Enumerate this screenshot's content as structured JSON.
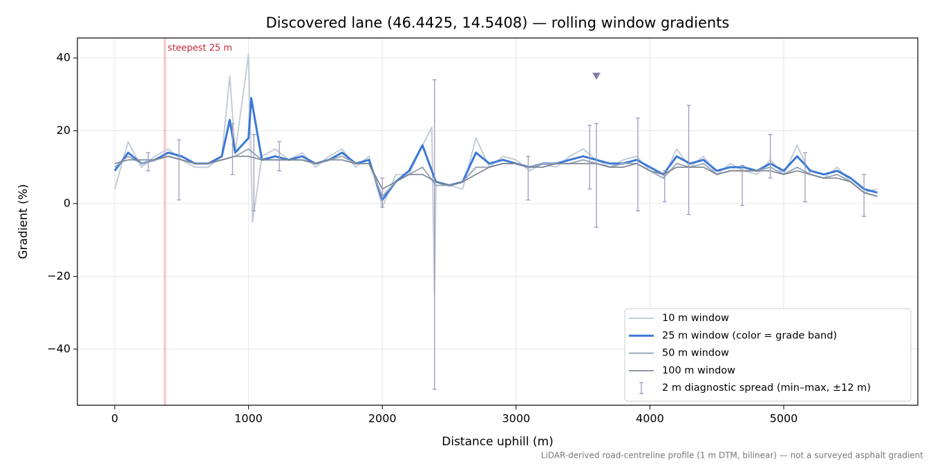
{
  "chart_data": {
    "type": "line",
    "title": "Discovered lane (46.4425, 14.5408) — rolling window gradients",
    "xlabel": "Distance uphill (m)",
    "ylabel": "Gradient (%)",
    "footnote": "LiDAR-derived road-centreline profile (1 m DTM, bilinear) — not a surveyed asphalt gradient",
    "xlim": [
      -279,
      6002
    ],
    "ylim": [
      -55.4,
      45.5
    ],
    "xticks": [
      0,
      1000,
      2000,
      3000,
      4000,
      5000
    ],
    "yticks": [
      {
        "value": -40,
        "label": "−40"
      },
      {
        "value": -20,
        "label": "−20"
      },
      0,
      20,
      40
    ],
    "grid": true,
    "legend": "lower right",
    "series": [
      {
        "name": "10 m window",
        "color": "#c3ccd7",
        "width": 2,
        "x": [
          0,
          100,
          200,
          300,
          400,
          500,
          600,
          700,
          800,
          860,
          900,
          1000,
          1030,
          1100,
          1200,
          1300,
          1400,
          1500,
          1600,
          1700,
          1800,
          1900,
          2000,
          2100,
          2200,
          2300,
          2370,
          2390,
          2400,
          2500,
          2600,
          2700,
          2800,
          2900,
          3000,
          3100,
          3200,
          3300,
          3400,
          3500,
          3600,
          3700,
          3800,
          3900,
          4000,
          4100,
          4200,
          4300,
          4400,
          4500,
          4600,
          4700,
          4800,
          4900,
          5000,
          5100,
          5200,
          5300,
          5400,
          5500,
          5600,
          5700
        ],
        "values": [
          4,
          17,
          10,
          13,
          15,
          12,
          10,
          10,
          13,
          35,
          14,
          41,
          -5,
          13,
          15,
          12,
          14,
          10,
          13,
          15,
          10,
          13,
          -1,
          8,
          8,
          16,
          21,
          -25,
          5,
          5,
          4,
          18,
          10,
          13,
          12,
          9,
          11,
          10,
          13,
          15,
          12,
          10,
          12,
          13,
          9,
          7,
          15,
          10,
          13,
          8,
          11,
          9,
          8,
          12,
          8,
          16,
          8,
          7,
          10,
          6,
          3,
          4
        ]
      },
      {
        "name": "25 m window (color = grade band)",
        "color": "#3a78d6",
        "width": 3,
        "x": [
          0,
          100,
          200,
          300,
          400,
          500,
          600,
          700,
          800,
          860,
          900,
          1000,
          1020,
          1100,
          1200,
          1300,
          1400,
          1500,
          1600,
          1700,
          1800,
          1900,
          2000,
          2100,
          2200,
          2300,
          2400,
          2500,
          2600,
          2700,
          2800,
          2900,
          3000,
          3100,
          3200,
          3300,
          3400,
          3500,
          3600,
          3700,
          3800,
          3900,
          4000,
          4100,
          4200,
          4300,
          4400,
          4500,
          4600,
          4700,
          4800,
          4900,
          5000,
          5100,
          5200,
          5300,
          5400,
          5500,
          5600,
          5700
        ],
        "values": [
          9,
          14,
          11,
          12,
          14,
          13,
          11,
          11,
          13,
          23,
          14,
          18,
          29,
          12,
          13,
          12,
          13,
          11,
          12,
          14,
          11,
          12,
          1,
          6,
          9,
          16,
          6,
          5,
          6,
          14,
          11,
          12,
          11,
          10,
          11,
          11,
          12,
          13,
          12,
          11,
          11,
          12,
          10,
          8,
          13,
          11,
          12,
          9,
          10,
          10,
          9,
          11,
          9,
          13,
          9,
          8,
          9,
          7,
          4,
          3
        ]
      },
      {
        "name": "50 m window",
        "color": "#9aa8b8",
        "width": 2,
        "x": [
          0,
          100,
          200,
          300,
          400,
          500,
          600,
          700,
          800,
          900,
          1000,
          1100,
          1200,
          1300,
          1400,
          1500,
          1600,
          1700,
          1800,
          1900,
          2000,
          2100,
          2200,
          2300,
          2400,
          2500,
          2600,
          2700,
          2800,
          2900,
          3000,
          3100,
          3200,
          3300,
          3400,
          3500,
          3600,
          3700,
          3800,
          3900,
          4000,
          4100,
          4200,
          4300,
          4400,
          4500,
          4600,
          4700,
          4800,
          4900,
          5000,
          5100,
          5200,
          5300,
          5400,
          5500,
          5600,
          5700
        ],
        "values": [
          10,
          13,
          11,
          12,
          13,
          12,
          11,
          11,
          12,
          13,
          15,
          12,
          12,
          12,
          12,
          11,
          12,
          13,
          11,
          11,
          2,
          6,
          8,
          10,
          5,
          5,
          6,
          10,
          10,
          11,
          11,
          10,
          11,
          11,
          11,
          12,
          11,
          10,
          11,
          11,
          9,
          7,
          11,
          10,
          11,
          8,
          9,
          9,
          9,
          10,
          8,
          10,
          8,
          7,
          8,
          6,
          3,
          2
        ]
      },
      {
        "name": "100 m window",
        "color": "#76808f",
        "width": 1.6,
        "x": [
          0,
          100,
          200,
          300,
          400,
          500,
          600,
          700,
          800,
          900,
          1000,
          1100,
          1200,
          1300,
          1400,
          1500,
          1600,
          1700,
          1800,
          1900,
          2000,
          2100,
          2200,
          2300,
          2400,
          2500,
          2600,
          2700,
          2800,
          2900,
          3000,
          3100,
          3200,
          3300,
          3400,
          3500,
          3600,
          3700,
          3800,
          3900,
          4000,
          4100,
          4200,
          4300,
          4400,
          4500,
          4600,
          4700,
          4800,
          4900,
          5000,
          5100,
          5200,
          5300,
          5400,
          5500,
          5600,
          5700
        ],
        "values": [
          11,
          12,
          12,
          12,
          13,
          12,
          11,
          11,
          12,
          13,
          13,
          12,
          12,
          12,
          12,
          11,
          12,
          12,
          11,
          11,
          4,
          6,
          8,
          8,
          6,
          5,
          6,
          8,
          10,
          11,
          11,
          10,
          10,
          11,
          11,
          11,
          11,
          10,
          10,
          11,
          9,
          8,
          10,
          10,
          10,
          8,
          9,
          9,
          9,
          9,
          8,
          9,
          8,
          7,
          7,
          6,
          3,
          2
        ]
      }
    ],
    "spread": {
      "name": "2 m diagnostic spread (min–max, ±12 m)",
      "color": "#9c98bd",
      "x": [
        250,
        480,
        880,
        1040,
        1230,
        2000,
        2390,
        3090,
        3550,
        3600,
        3910,
        4110,
        4290,
        4690,
        4900,
        5160,
        5600
      ],
      "low": [
        9,
        1,
        8,
        -2,
        9,
        -1,
        -51,
        1,
        4,
        -6.5,
        -2,
        0.5,
        -3,
        -0.5,
        7,
        0.5,
        -3.5
      ],
      "high": [
        14,
        17.5,
        22,
        19,
        17,
        7,
        34,
        13,
        21.5,
        22,
        23.5,
        9,
        27,
        10.5,
        19,
        14,
        8
      ]
    },
    "peak_marker": {
      "x": 3600,
      "y": 35,
      "color": "#857aa6"
    },
    "steepest": {
      "x": [
        365,
        385
      ],
      "label": "steepest 25 m",
      "color": "#e57373"
    }
  }
}
